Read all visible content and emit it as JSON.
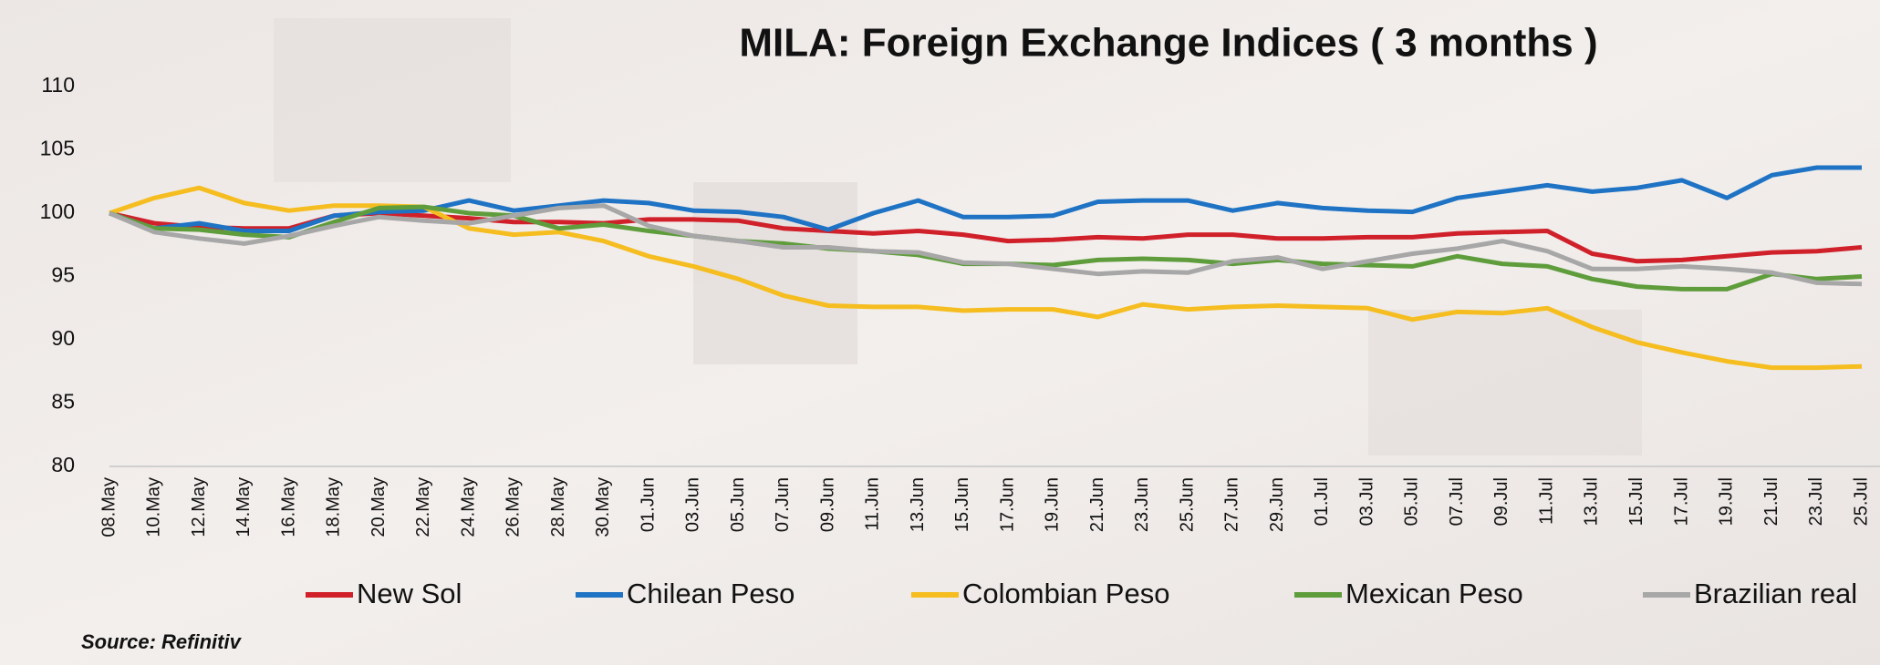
{
  "chart_data": {
    "type": "line",
    "title": "MILA: Foreign Exchange Indices ( 3 months )",
    "source": "Source: Refinitiv",
    "categories": [
      "08.May",
      "10.May",
      "12.May",
      "14.May",
      "16.May",
      "18.May",
      "20.May",
      "22.May",
      "24.May",
      "26.May",
      "28.May",
      "30.May",
      "01.Jun",
      "03.Jun",
      "05.Jun",
      "07.Jun",
      "09.Jun",
      "11.Jun",
      "13.Jun",
      "15.Jun",
      "17.Jun",
      "19.Jun",
      "21.Jun",
      "23.Jun",
      "25.Jun",
      "27.Jun",
      "29.Jun",
      "01.Jul",
      "03.Jul",
      "05.Jul",
      "07.Jul",
      "09.Jul",
      "11.Jul",
      "13.Jul",
      "15.Jul",
      "17.Jul",
      "19.Jul",
      "21.Jul",
      "23.Jul",
      "25.Jul"
    ],
    "series": [
      {
        "name": "New Sol",
        "color": "#d0202a",
        "values": [
          100,
          99.2,
          98.9,
          98.8,
          98.8,
          99.8,
          100,
          99.8,
          99.6,
          99.3,
          99.3,
          99.2,
          99.5,
          99.5,
          99.4,
          98.8,
          98.6,
          98.4,
          98.6,
          98.3,
          97.8,
          97.9,
          98.1,
          98.0,
          98.3,
          98.3,
          98.0,
          98.0,
          98.1,
          98.1,
          98.4,
          98.5,
          98.6,
          96.8,
          96.2,
          96.3,
          96.6,
          96.9,
          97.0,
          97.3
        ]
      },
      {
        "name": "Chilean Peso",
        "color": "#1f73c4",
        "values": [
          100,
          98.8,
          99.2,
          98.6,
          98.6,
          99.8,
          100.1,
          100.2,
          101.0,
          100.2,
          100.6,
          101.0,
          100.8,
          100.2,
          100.1,
          99.7,
          98.7,
          100.0,
          101.0,
          99.7,
          99.7,
          99.8,
          100.9,
          101.0,
          101.0,
          100.2,
          100.8,
          100.4,
          100.2,
          100.1,
          101.2,
          101.7,
          102.2,
          101.7,
          102.0,
          102.6,
          101.2,
          103.0,
          103.6,
          103.6
        ]
      },
      {
        "name": "Colombian Peso",
        "color": "#f5bd1f",
        "values": [
          100,
          101.2,
          102,
          100.8,
          100.2,
          100.6,
          100.6,
          100.5,
          98.8,
          98.3,
          98.5,
          97.8,
          96.6,
          95.8,
          94.8,
          93.5,
          92.7,
          92.6,
          92.6,
          92.3,
          92.4,
          92.4,
          91.8,
          92.8,
          92.4,
          92.6,
          92.7,
          92.6,
          92.5,
          91.6,
          92.2,
          92.1,
          92.5,
          91.0,
          89.8,
          89.0,
          88.3,
          87.8,
          87.8,
          87.9
        ]
      },
      {
        "name": "Mexican Peso",
        "color": "#5f9d3c",
        "values": [
          100,
          98.8,
          98.7,
          98.3,
          98.1,
          99.3,
          100.4,
          100.5,
          100.0,
          99.8,
          98.8,
          99.1,
          98.6,
          98.2,
          97.8,
          97.6,
          97.2,
          97.0,
          96.7,
          96.0,
          96.0,
          95.9,
          96.3,
          96.4,
          96.3,
          96.0,
          96.3,
          96.0,
          95.9,
          95.8,
          96.6,
          96.0,
          95.8,
          94.8,
          94.2,
          94.0,
          94.0,
          95.2,
          94.8,
          95.0
        ]
      },
      {
        "name": "Brazilian real",
        "color": "#a7a7a7",
        "values": [
          100,
          98.5,
          98.0,
          97.6,
          98.2,
          99.0,
          99.7,
          99.4,
          99.2,
          99.8,
          100.4,
          100.6,
          99.0,
          98.2,
          97.8,
          97.3,
          97.3,
          97.0,
          96.9,
          96.1,
          96.0,
          95.6,
          95.2,
          95.4,
          95.3,
          96.2,
          96.5,
          95.6,
          96.2,
          96.8,
          97.2,
          97.8,
          97.0,
          95.6,
          95.6,
          95.8,
          95.6,
          95.3,
          94.5,
          94.4
        ]
      }
    ],
    "ylim": [
      80,
      110
    ],
    "yticks": [
      80,
      85,
      90,
      95,
      100,
      105,
      110
    ],
    "grid": false
  }
}
